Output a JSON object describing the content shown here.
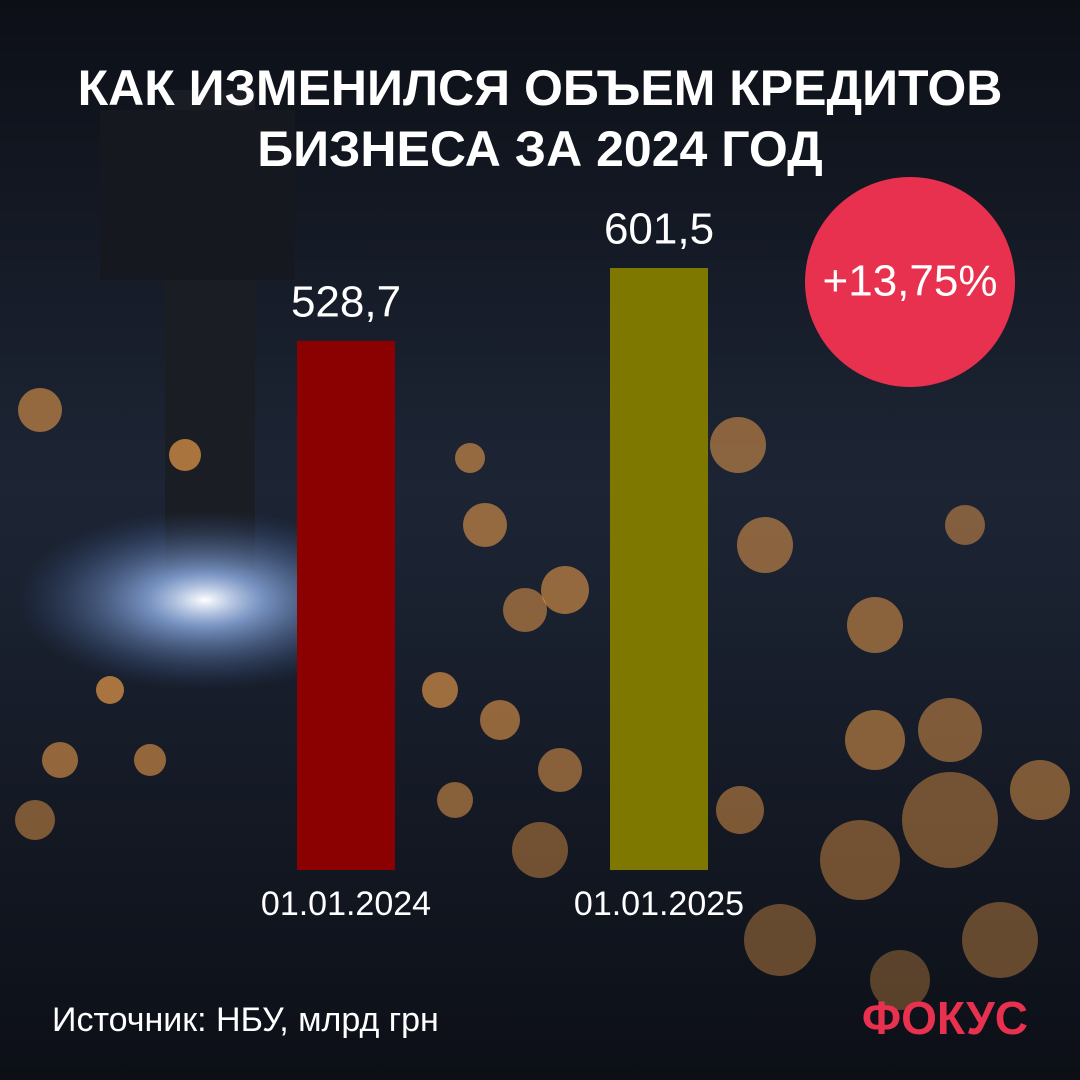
{
  "chart_data": {
    "type": "bar",
    "title": "КАК ИЗМЕНИЛСЯ ОБЪЕМ КРЕДИТОВ БИЗНЕСА ЗА 2024 ГОД",
    "categories": [
      "01.01.2024",
      "01.01.2025"
    ],
    "values": [
      528.7,
      601.5
    ],
    "value_labels": [
      "528,7",
      "601,5"
    ],
    "colors": [
      "#8b0000",
      "#7f7800"
    ],
    "annotation": "+13,75%",
    "source": "Источник: НБУ, млрд грн",
    "logo": "ФОКУС"
  }
}
